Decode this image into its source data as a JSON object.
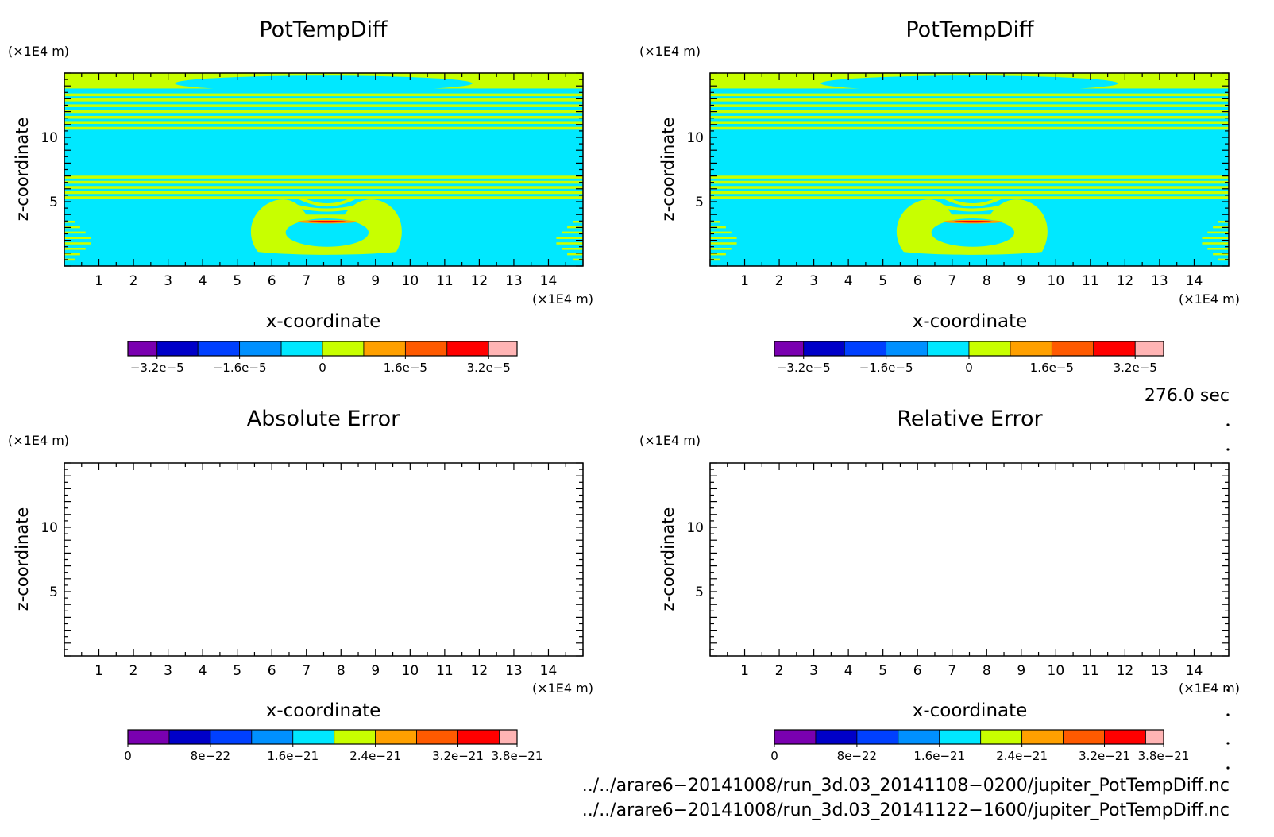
{
  "chart_data": [
    {
      "type": "heatmap",
      "title": "PotTempDiff",
      "xlabel": "x-coordinate",
      "ylabel": "z-coordinate",
      "x_unit": "(×1E4 m)",
      "y_unit": "(×1E4 m)",
      "xlim": [
        0,
        15
      ],
      "ylim": [
        0,
        15
      ],
      "x_ticks": [
        1,
        2,
        3,
        4,
        5,
        6,
        7,
        8,
        9,
        10,
        11,
        12,
        13,
        14
      ],
      "y_ticks": [
        5,
        10
      ],
      "colorbar": {
        "colors": [
          "#7a00b0",
          "#0000c8",
          "#0040ff",
          "#0090ff",
          "#00e8ff",
          "#c8ff00",
          "#ffa000",
          "#ff5a00",
          "#ff0000",
          "#ffb4b4"
        ],
        "tick_labels": [
          "−3.2e−5",
          "−1.6e−5",
          "0",
          "1.6e−5",
          "3.2e−5"
        ],
        "range": [
          -4e-05,
          4e-05
        ]
      },
      "field": "mostly near zero (cyan) with yellow-green horizontal bands near z≈6–7 and z≈12–14 and a yellow-green anomaly centered at x≈7.5, z≈3–5"
    },
    {
      "type": "heatmap",
      "title": "PotTempDiff",
      "xlabel": "x-coordinate",
      "ylabel": "z-coordinate",
      "x_unit": "(×1E4 m)",
      "y_unit": "(×1E4 m)",
      "xlim": [
        0,
        15
      ],
      "ylim": [
        0,
        15
      ],
      "x_ticks": [
        1,
        2,
        3,
        4,
        5,
        6,
        7,
        8,
        9,
        10,
        11,
        12,
        13,
        14
      ],
      "y_ticks": [
        5,
        10
      ],
      "colorbar": {
        "colors": [
          "#7a00b0",
          "#0000c8",
          "#0040ff",
          "#0090ff",
          "#00e8ff",
          "#c8ff00",
          "#ffa000",
          "#ff5a00",
          "#ff0000",
          "#ffb4b4"
        ],
        "tick_labels": [
          "−3.2e−5",
          "−1.6e−5",
          "0",
          "1.6e−5",
          "3.2e−5"
        ],
        "range": [
          -4e-05,
          4e-05
        ]
      },
      "field": "identical to left panel"
    },
    {
      "type": "heatmap",
      "title": "Absolute Error",
      "xlabel": "x-coordinate",
      "ylabel": "z-coordinate",
      "x_unit": "(×1E4 m)",
      "y_unit": "(×1E4 m)",
      "xlim": [
        0,
        15
      ],
      "ylim": [
        0,
        15
      ],
      "x_ticks": [
        1,
        2,
        3,
        4,
        5,
        6,
        7,
        8,
        9,
        10,
        11,
        12,
        13,
        14
      ],
      "y_ticks": [
        5,
        10
      ],
      "colorbar": {
        "colors": [
          "#7a00b0",
          "#0000c8",
          "#0040ff",
          "#0090ff",
          "#00e8ff",
          "#c8ff00",
          "#ffa000",
          "#ff5a00",
          "#ff0000",
          "#ffb4b4"
        ],
        "tick_labels": [
          "0",
          "8e−22",
          "1.6e−21",
          "2.4e−21",
          "3.2e−21",
          "3.8e−21"
        ],
        "range": [
          0,
          3.8e-21
        ]
      },
      "field": "empty"
    },
    {
      "type": "heatmap",
      "title": "Relative Error",
      "xlabel": "x-coordinate",
      "ylabel": "z-coordinate",
      "x_unit": "(×1E4 m)",
      "y_unit": "(×1E4 m)",
      "xlim": [
        0,
        15
      ],
      "ylim": [
        0,
        15
      ],
      "x_ticks": [
        1,
        2,
        3,
        4,
        5,
        6,
        7,
        8,
        9,
        10,
        11,
        12,
        13,
        14
      ],
      "y_ticks": [
        5,
        10
      ],
      "colorbar": {
        "colors": [
          "#7a00b0",
          "#0000c8",
          "#0040ff",
          "#0090ff",
          "#00e8ff",
          "#c8ff00",
          "#ffa000",
          "#ff5a00",
          "#ff0000",
          "#ffb4b4"
        ],
        "tick_labels": [
          "0",
          "8e−22",
          "1.6e−21",
          "2.4e−21",
          "3.2e−21",
          "3.8e−21"
        ],
        "range": [
          0,
          3.8e-21
        ]
      },
      "field": "empty"
    }
  ],
  "time_label": "276.0 sec",
  "file_paths": [
    "../../arare6−20141008/run_3d.03_20141108−0200/jupiter_PotTempDiff.nc",
    "../../arare6−20141008/run_3d.03_20141122−1600/jupiter_PotTempDiff.nc"
  ]
}
